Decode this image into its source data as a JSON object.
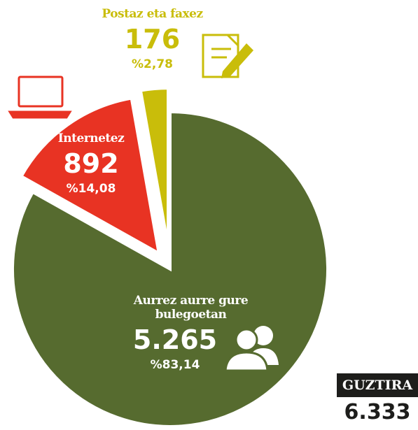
{
  "chart_data": {
    "type": "pie",
    "categories": [
      "Aurrez aurre gure bulegoetan",
      "Internetez",
      "Postaz eta faxez"
    ],
    "values": [
      5265,
      892,
      176
    ],
    "value_labels": [
      "5.265",
      "892",
      "176"
    ],
    "percents": [
      83.14,
      14.08,
      2.78
    ],
    "percent_labels": [
      "%83,14",
      "%14,08",
      "%2,78"
    ],
    "colors": [
      "#566b2f",
      "#e83323",
      "#c9bd0a"
    ],
    "total_label": "GUZTIRA",
    "total": 6333,
    "total_value_label": "6.333"
  }
}
